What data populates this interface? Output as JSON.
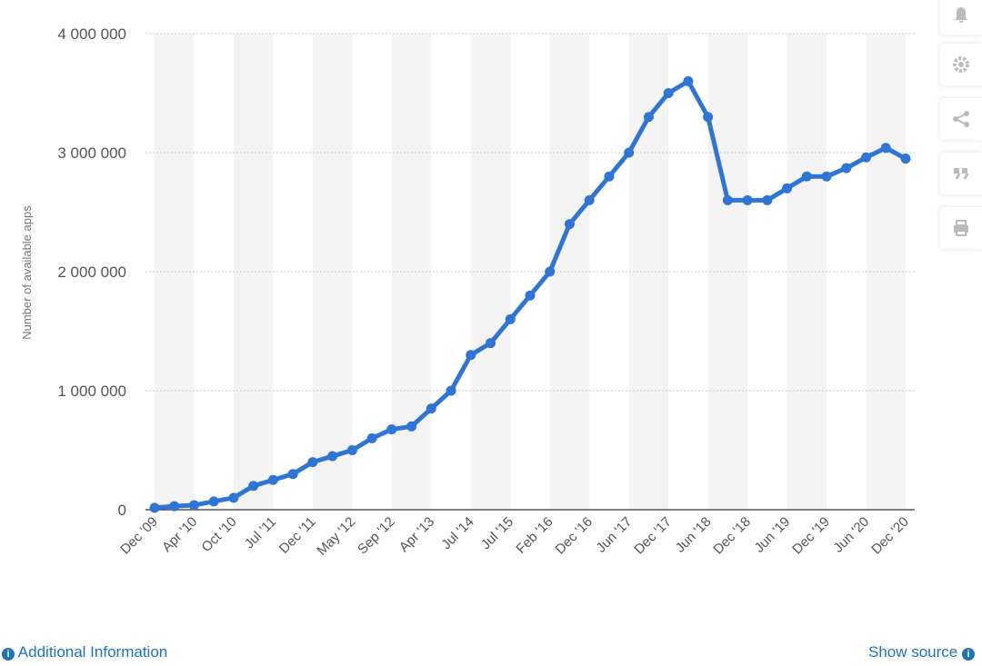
{
  "chart_data": {
    "type": "line",
    "y_label": "Number of available apps",
    "categories": [
      "Dec '09",
      null,
      "Apr '10",
      null,
      "Oct '10",
      null,
      "Jul '11",
      null,
      "Dec '11",
      null,
      "May '12",
      null,
      "Sep '12",
      null,
      "Apr '13",
      null,
      "Jul '14",
      null,
      "Jul '15",
      null,
      "Feb '16",
      null,
      "Dec '16",
      null,
      "Jun '17",
      null,
      "Dec '17",
      null,
      "Jun '18",
      null,
      "Dec '18",
      null,
      "Jun '19",
      null,
      "Dec '19",
      null,
      "Jun '20",
      null,
      "Dec '20"
    ],
    "series": [
      {
        "name": "Number of available apps",
        "color": "#2f75d6",
        "values": [
          16000,
          30000,
          38000,
          70000,
          100000,
          200000,
          250000,
          300000,
          400000,
          450000,
          500000,
          600000,
          675000,
          700000,
          850000,
          1000000,
          1300000,
          1400000,
          1600000,
          1800000,
          2000000,
          2400000,
          2600000,
          2800000,
          3000000,
          3300000,
          3500000,
          3600000,
          3300000,
          2600000,
          2600000,
          2600000,
          2700000,
          2800000,
          2800000,
          2870000,
          2960000,
          3040000,
          2950000
        ]
      }
    ],
    "ylim": [
      0,
      4000000
    ],
    "yticks": [
      0,
      {
        "value": 1000000,
        "label": "1 000 000"
      },
      {
        "value": 2000000,
        "label": "2 000 000"
      },
      {
        "value": 3000000,
        "label": "3 000 000"
      },
      {
        "value": 4000000,
        "label": "4 000 000"
      }
    ],
    "grid": true
  },
  "footer": {
    "left": "Additional Information",
    "right": "Show source"
  }
}
